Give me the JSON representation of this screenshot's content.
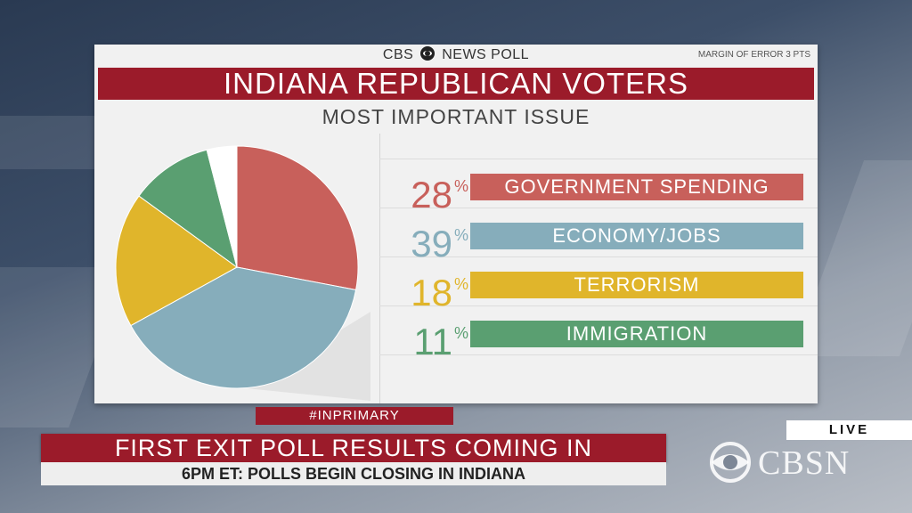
{
  "header": {
    "poll_source_left": "CBS",
    "poll_source_right": "NEWS POLL",
    "margin_of_error": "MARGIN OF ERROR 3 PTS",
    "title": "INDIANA REPUBLICAN VOTERS",
    "subtitle": "MOST IMPORTANT ISSUE"
  },
  "chart_data": {
    "type": "pie",
    "title": "INDIANA REPUBLICAN VOTERS",
    "subtitle": "MOST IMPORTANT ISSUE",
    "categories": [
      "GOVERNMENT SPENDING",
      "ECONOMY/JOBS",
      "TERRORISM",
      "IMMIGRATION"
    ],
    "values": [
      28,
      39,
      18,
      11
    ],
    "unit": "%",
    "colors": [
      "#c8605b",
      "#86adbb",
      "#e0b52b",
      "#5a9f71"
    ],
    "remainder_color": "#ffffff"
  },
  "rows": [
    {
      "value": "28",
      "pct_sign": "%",
      "label": "GOVERNMENT SPENDING",
      "color": "#c8605b"
    },
    {
      "value": "39",
      "pct_sign": "%",
      "label": "ECONOMY/JOBS",
      "color": "#86adbb"
    },
    {
      "value": "18",
      "pct_sign": "%",
      "label": "TERRORISM",
      "color": "#e0b52b"
    },
    {
      "value": "11",
      "pct_sign": "%",
      "label": "IMMIGRATION",
      "color": "#5a9f71"
    }
  ],
  "ticker": {
    "hashtag": "#INPRIMARY",
    "headline": "FIRST EXIT POLL RESULTS COMING IN",
    "subline": "6PM ET: POLLS BEGIN CLOSING IN INDIANA"
  },
  "network": {
    "live_label": "LIVE",
    "logo_text": "CBSN"
  },
  "colors": {
    "brand_red": "#9b1b2a"
  }
}
